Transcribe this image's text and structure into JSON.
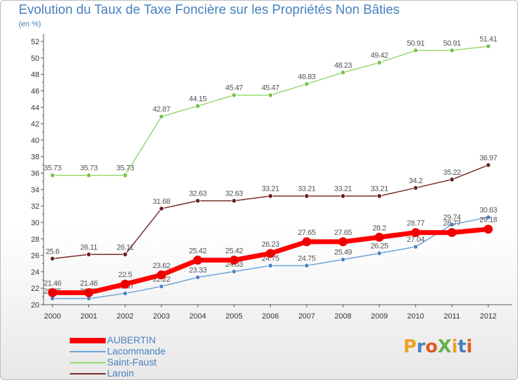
{
  "chart_data": {
    "type": "line",
    "title": "Evolution du Taux de Taxe Foncière sur les Propriétés Non Bâties",
    "unit_label": "(en %)",
    "categories": [
      "2000",
      "2001",
      "2002",
      "2003",
      "2004",
      "2005",
      "2006",
      "2007",
      "2008",
      "2009",
      "2010",
      "2011",
      "2012"
    ],
    "y_ticks": [
      "20",
      "22",
      "24",
      "26",
      "28",
      "30",
      "32",
      "34",
      "36",
      "38",
      "40",
      "42",
      "44",
      "46",
      "48",
      "50",
      "52"
    ],
    "ylim": [
      20,
      52
    ],
    "grid": false,
    "legend_position": "bottom-left",
    "series": [
      {
        "name": "Saint-Faust",
        "color": "#9ad872",
        "point_color": "#79c24a",
        "values": [
          35.73,
          35.73,
          35.73,
          42.87,
          44.15,
          45.47,
          45.47,
          46.83,
          48.23,
          49.42,
          50.91,
          50.91,
          51.41
        ],
        "labels": [
          "35.73",
          "35.73",
          "35.73",
          "42.87",
          "44.15",
          "45.47",
          "45.47",
          "46.83",
          "48.23",
          "49.42",
          "50.91",
          "50.91",
          "51.41"
        ]
      },
      {
        "name": "Laroin",
        "color": "#7a2a2a",
        "point_color": "#6b1f1f",
        "values": [
          25.6,
          26.11,
          26.11,
          31.68,
          32.63,
          32.63,
          33.21,
          33.21,
          33.21,
          33.21,
          34.2,
          35.22,
          36.97
        ],
        "labels": [
          "25.6",
          "26.11",
          "26.11",
          "31.68",
          "32.63",
          "32.63",
          "33.21",
          "33.21",
          "33.21",
          "33.21",
          "34.2",
          "35.22",
          "36.97"
        ]
      },
      {
        "name": "Lacommande",
        "color": "#6aa2d4",
        "point_color": "#4a86c0",
        "values": [
          20.75,
          20.75,
          21.37,
          22.22,
          23.33,
          24.03,
          24.75,
          24.75,
          25.49,
          26.25,
          27.04,
          29.74,
          30.63
        ],
        "labels": [
          "20.75",
          "20.75",
          "21.37",
          "22.22",
          "23.33",
          "24.03",
          "24.75",
          "24.75",
          "25.49",
          "26.25",
          "27.04",
          "29.74",
          "30.63"
        ]
      },
      {
        "name": "AUBERTIN",
        "color": "#ff0000",
        "point_color": "#ee0000",
        "values": [
          21.46,
          21.46,
          22.5,
          23.62,
          25.42,
          25.42,
          26.23,
          27.65,
          27.65,
          28.2,
          28.77,
          28.77,
          29.18
        ],
        "labels": [
          "21.46",
          "21.46",
          "22.5",
          "23.62",
          "25.42",
          "25.42",
          "26.23",
          "27.65",
          "27.65",
          "28.2",
          "28.77",
          "28.77",
          "29.18"
        ]
      }
    ],
    "legend": [
      {
        "name": "AUBERTIN",
        "color": "#ff0000",
        "weight": "heavy"
      },
      {
        "name": "Lacommande",
        "color": "#6aa2d4",
        "weight": "thin"
      },
      {
        "name": "Saint-Faust",
        "color": "#9ad872",
        "weight": "thin"
      },
      {
        "name": "Laroin",
        "color": "#7a2a2a",
        "weight": "thin"
      }
    ]
  },
  "logo": {
    "text": "ProXiti",
    "colors": [
      "#f0a020",
      "#4a80c0",
      "#e05a20",
      "#6ab04c",
      "#f0a020",
      "#4a80c0",
      "#e05a20"
    ]
  }
}
